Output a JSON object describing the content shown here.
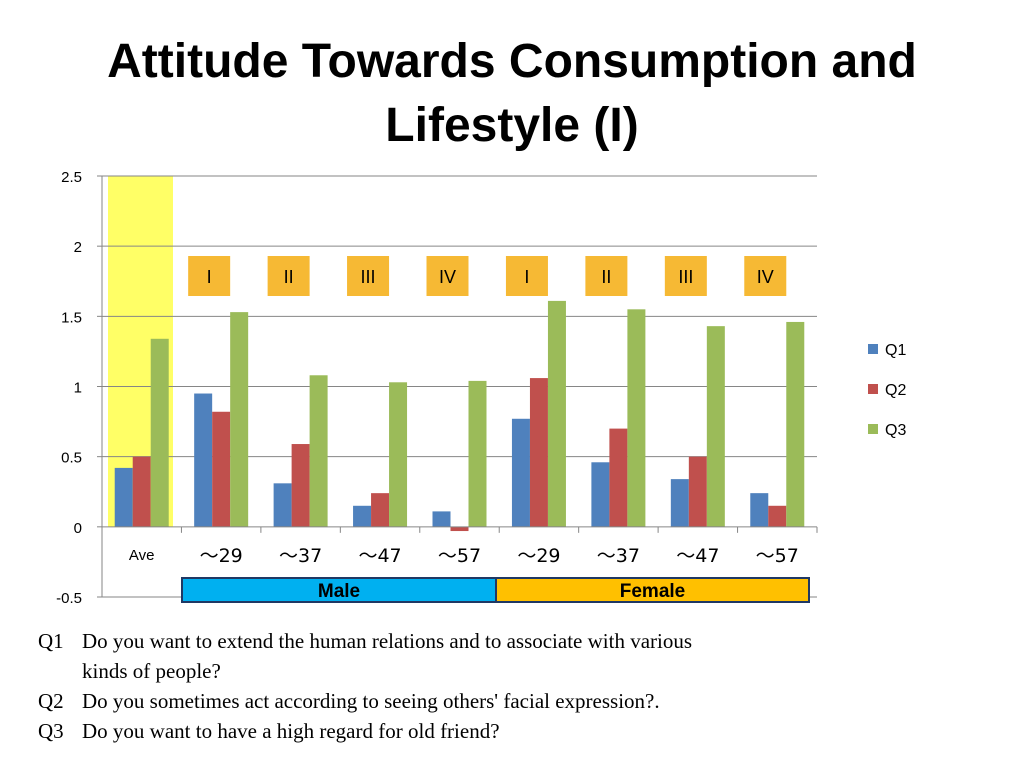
{
  "title_line1": "Attitude Towards Consumption and",
  "title_line2": "Lifestyle (I)",
  "chart_data": {
    "type": "bar",
    "categories": [
      "Ave",
      "～29",
      "～37",
      "～47",
      "～57",
      "～29",
      "～37",
      "～47",
      "～57"
    ],
    "series": [
      {
        "name": "Q1",
        "color": "#4f81bd",
        "values": [
          0.42,
          0.95,
          0.31,
          0.15,
          0.11,
          0.77,
          0.46,
          0.34,
          0.24
        ]
      },
      {
        "name": "Q2",
        "color": "#c0504d",
        "values": [
          0.5,
          0.82,
          0.59,
          0.24,
          -0.03,
          1.06,
          0.7,
          0.5,
          0.15
        ]
      },
      {
        "name": "Q3",
        "color": "#9bbb59",
        "values": [
          1.34,
          1.53,
          1.08,
          1.03,
          1.04,
          1.61,
          1.55,
          1.43,
          1.46
        ]
      }
    ],
    "yticks": [
      "2.5",
      "2",
      "1.5",
      "1",
      "0.5",
      "0",
      "-0.5"
    ],
    "ylim": [
      -0.5,
      2.5
    ],
    "grid": true,
    "legend": "right",
    "highlight_category": "Ave",
    "highlight_color": "#ffff66",
    "group_labels": [
      "I",
      "II",
      "III",
      "IV",
      "I",
      "II",
      "III",
      "IV"
    ],
    "group_label_color": "#f6b934",
    "gender_bands": [
      {
        "label": "Male",
        "color": "#00b0f0"
      },
      {
        "label": "Female",
        "color": "#ffc000"
      }
    ]
  },
  "notes": [
    {
      "q": "Q1",
      "text": "Do you want to extend the human relations and to associate with various",
      "cont": "kinds of people?"
    },
    {
      "q": "Q2",
      "text": "Do you sometimes act according to seeing others' facial expression?."
    },
    {
      "q": "Q3",
      "text": "Do you want to have a high regard for old friend?"
    }
  ]
}
